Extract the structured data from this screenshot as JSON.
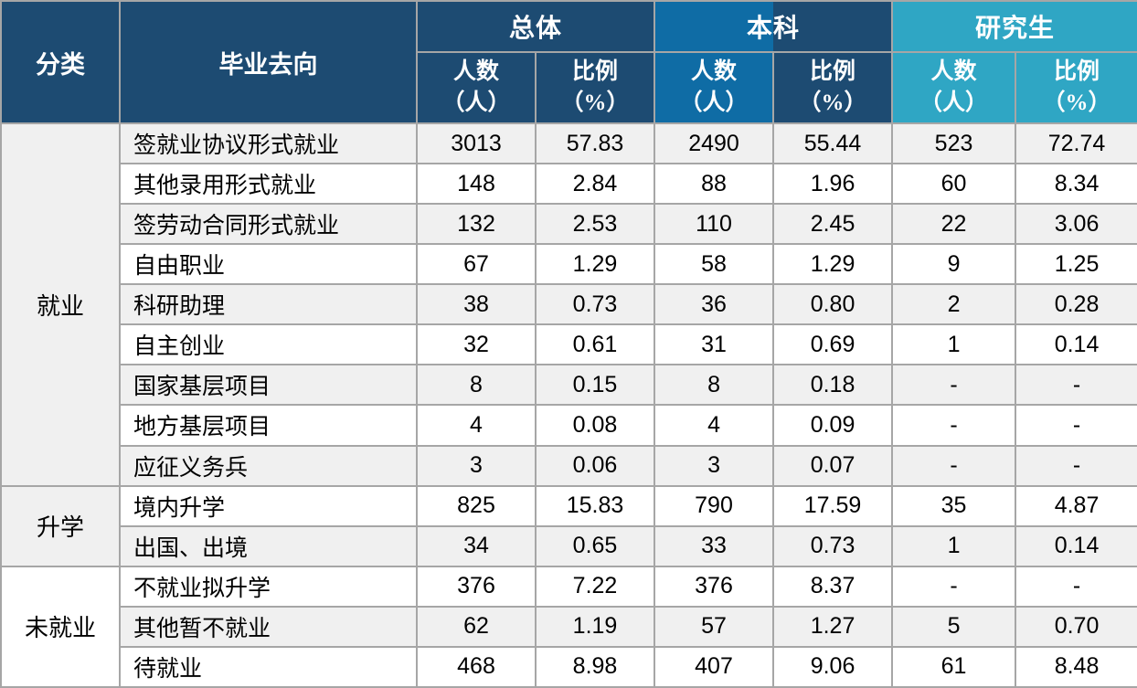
{
  "colors": {
    "header_navy": "#1D4B72",
    "header_blue": "#0F6CA5",
    "header_teal": "#2FA6C4",
    "row_stripe": "#F0F0F0",
    "gridline": "#A6A6A6",
    "header_text": "#FFFFFF",
    "body_text": "#000000"
  },
  "header": {
    "category": "分类",
    "destination": "毕业去向",
    "groups": [
      {
        "label": "总体"
      },
      {
        "label": "本科"
      },
      {
        "label": "研究生"
      }
    ],
    "count_label": "人数",
    "count_unit": "（人）",
    "ratio_label": "比例",
    "ratio_unit": "（%）"
  },
  "body": {
    "sections": [
      {
        "category": "就业",
        "rows": [
          {
            "label": "签就业协议形式就业",
            "values": [
              "3013",
              "57.83",
              "2490",
              "55.44",
              "523",
              "72.74"
            ]
          },
          {
            "label": "其他录用形式就业",
            "values": [
              "148",
              "2.84",
              "88",
              "1.96",
              "60",
              "8.34"
            ]
          },
          {
            "label": "签劳动合同形式就业",
            "values": [
              "132",
              "2.53",
              "110",
              "2.45",
              "22",
              "3.06"
            ]
          },
          {
            "label": "自由职业",
            "values": [
              "67",
              "1.29",
              "58",
              "1.29",
              "9",
              "1.25"
            ]
          },
          {
            "label": "科研助理",
            "values": [
              "38",
              "0.73",
              "36",
              "0.80",
              "2",
              "0.28"
            ]
          },
          {
            "label": "自主创业",
            "values": [
              "32",
              "0.61",
              "31",
              "0.69",
              "1",
              "0.14"
            ]
          },
          {
            "label": "国家基层项目",
            "values": [
              "8",
              "0.15",
              "8",
              "0.18",
              "-",
              "-"
            ]
          },
          {
            "label": "地方基层项目",
            "values": [
              "4",
              "0.08",
              "4",
              "0.09",
              "-",
              "-"
            ]
          },
          {
            "label": "应征义务兵",
            "values": [
              "3",
              "0.06",
              "3",
              "0.07",
              "-",
              "-"
            ]
          }
        ]
      },
      {
        "category": "升学",
        "rows": [
          {
            "label": "境内升学",
            "values": [
              "825",
              "15.83",
              "790",
              "17.59",
              "35",
              "4.87"
            ]
          },
          {
            "label": "出国、出境",
            "values": [
              "34",
              "0.65",
              "33",
              "0.73",
              "1",
              "0.14"
            ]
          }
        ]
      },
      {
        "category": "未就业",
        "rows": [
          {
            "label": "不就业拟升学",
            "values": [
              "376",
              "7.22",
              "376",
              "8.37",
              "-",
              "-"
            ]
          },
          {
            "label": "其他暂不就业",
            "values": [
              "62",
              "1.19",
              "57",
              "1.27",
              "5",
              "0.70"
            ]
          },
          {
            "label": "待就业",
            "values": [
              "468",
              "8.98",
              "407",
              "9.06",
              "61",
              "8.48"
            ]
          }
        ]
      }
    ]
  }
}
